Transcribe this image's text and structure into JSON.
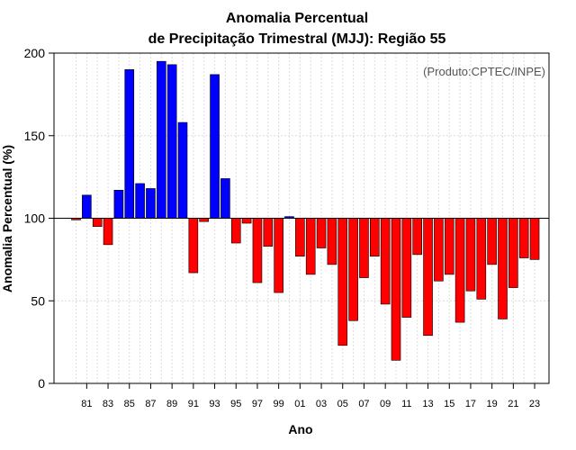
{
  "chart_data": {
    "type": "bar",
    "title_line1": "Anomalia Percentual",
    "title_line2": "de Precipitação Trimestral (MJJ): Região 55",
    "xlabel": "Ano",
    "ylabel": "Anomalia Percentual (%)",
    "source_note": "(Produto:CPTEC/INPE)",
    "baseline": 100,
    "ylim": [
      0,
      200
    ],
    "yticks": [
      "0",
      "50",
      "100",
      "150",
      "200"
    ],
    "xtick_labels": [
      "81",
      "83",
      "85",
      "87",
      "89",
      "91",
      "93",
      "95",
      "97",
      "99",
      "01",
      "03",
      "05",
      "07",
      "09",
      "11",
      "13",
      "15",
      "17",
      "19",
      "21",
      "23"
    ],
    "categories": [
      "1980",
      "1981",
      "1982",
      "1983",
      "1984",
      "1985",
      "1986",
      "1987",
      "1988",
      "1989",
      "1990",
      "1991",
      "1992",
      "1993",
      "1994",
      "1995",
      "1996",
      "1997",
      "1998",
      "1999",
      "2000",
      "2001",
      "2002",
      "2003",
      "2004",
      "2005",
      "2006",
      "2007",
      "2008",
      "2009",
      "2010",
      "2011",
      "2012",
      "2013",
      "2014",
      "2015",
      "2016",
      "2017",
      "2018",
      "2019",
      "2020",
      "2021",
      "2022",
      "2023"
    ],
    "values": [
      99,
      114,
      95,
      84,
      117,
      190,
      121,
      118,
      195,
      193,
      158,
      67,
      98,
      187,
      124,
      85,
      97,
      61,
      83,
      55,
      101,
      77,
      66,
      82,
      72,
      23,
      38,
      64,
      77,
      48,
      14,
      40,
      78,
      29,
      62,
      66,
      37,
      56,
      51,
      72,
      39,
      58,
      76,
      75
    ],
    "colors": {
      "above": "#0000ff",
      "below": "#ff0000",
      "bar_stroke": "#000000",
      "grid": "#dcdcdc",
      "axis": "#000000"
    }
  }
}
